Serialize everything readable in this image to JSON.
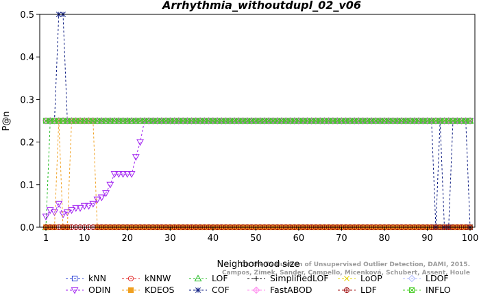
{
  "chart_data": {
    "type": "line",
    "title": "Arrhythmia_withoutdupl_02_v06",
    "xlabel": "Neighborhood size",
    "ylabel": "P@n",
    "xlim": [
      1,
      100
    ],
    "ylim": [
      0,
      0.5
    ],
    "xticks": [
      1,
      10,
      20,
      30,
      40,
      50,
      60,
      70,
      80,
      90,
      100
    ],
    "yticks": [
      0.0,
      0.1,
      0.2,
      0.3,
      0.4,
      0.5
    ],
    "grid": false,
    "legend_position": "bottom",
    "watermark_lines": [
      "Campos, Zimek, Sander, Campello, Micenková, Schubert, Assent, Houle",
      "On the Evaluation of Unsupervised Outlier Detection, DAMI, 2015."
    ],
    "series": [
      {
        "name": "kNN",
        "color": "#2a3fd6",
        "marker": "square",
        "segments": [
          {
            "x": [
              1,
              100
            ],
            "y": [
              0.25,
              0.25
            ]
          }
        ]
      },
      {
        "name": "kNNW",
        "color": "#e02020",
        "marker": "circle",
        "segments": [
          {
            "x": [
              1,
              100
            ],
            "y": [
              0.25,
              0.25
            ]
          }
        ]
      },
      {
        "name": "LOF",
        "color": "#22bb22",
        "marker": "triangle",
        "points": [
          [
            1,
            0.0
          ],
          [
            2,
            0.25
          ],
          [
            100,
            0.25
          ]
        ]
      },
      {
        "name": "SimplifiedLOF",
        "color": "#000000",
        "marker": "plus",
        "segments": [
          {
            "x": [
              1,
              100
            ],
            "y": [
              0.25,
              0.25
            ]
          }
        ]
      },
      {
        "name": "LoOP",
        "color": "#e6d400",
        "marker": "x",
        "segments": [
          {
            "x": [
              1,
              100
            ],
            "y": [
              0.25,
              0.25
            ]
          }
        ]
      },
      {
        "name": "LDOF",
        "color": "#aeb8ff",
        "marker": "diamond",
        "segments": [
          {
            "x": [
              1,
              100
            ],
            "y": [
              0.25,
              0.25
            ]
          }
        ]
      },
      {
        "name": "ODIN",
        "color": "#a020f0",
        "marker": "triangle-down",
        "points": [
          [
            1,
            0.025
          ],
          [
            2,
            0.04
          ],
          [
            3,
            0.035
          ],
          [
            4,
            0.055
          ],
          [
            5,
            0.03
          ],
          [
            6,
            0.035
          ],
          [
            7,
            0.04
          ],
          [
            8,
            0.045
          ],
          [
            9,
            0.045
          ],
          [
            10,
            0.05
          ],
          [
            11,
            0.05
          ],
          [
            12,
            0.055
          ],
          [
            13,
            0.065
          ],
          [
            14,
            0.07
          ],
          [
            15,
            0.08
          ],
          [
            16,
            0.1
          ],
          [
            17,
            0.125
          ],
          [
            18,
            0.125
          ],
          [
            19,
            0.125
          ],
          [
            20,
            0.125
          ],
          [
            21,
            0.125
          ],
          [
            22,
            0.165
          ],
          [
            23,
            0.2
          ],
          [
            24,
            0.25
          ],
          [
            100,
            0.25
          ]
        ]
      },
      {
        "name": "KDEOS",
        "color": "#f0a020",
        "marker": "square-filled",
        "points": [
          [
            1,
            0.0
          ],
          [
            3,
            0.0
          ],
          [
            4,
            0.25
          ],
          [
            5,
            0.0
          ],
          [
            6,
            0.0
          ],
          [
            7,
            0.25
          ],
          [
            8,
            0.25
          ],
          [
            12,
            0.25
          ],
          [
            13,
            0.0
          ],
          [
            100,
            0.0
          ]
        ]
      },
      {
        "name": "COF",
        "color": "#0a1a80",
        "marker": "asterisk",
        "points": [
          [
            1,
            0.25
          ],
          [
            2,
            0.25
          ],
          [
            3,
            0.25
          ],
          [
            4,
            0.5
          ],
          [
            5,
            0.5
          ],
          [
            6,
            0.25
          ],
          [
            91,
            0.25
          ],
          [
            92,
            0.0
          ],
          [
            93,
            0.25
          ],
          [
            94,
            0.0
          ],
          [
            95,
            0.0
          ],
          [
            96,
            0.25
          ],
          [
            97,
            0.25
          ],
          [
            98,
            0.25
          ],
          [
            99,
            0.25
          ],
          [
            100,
            0.0
          ]
        ]
      },
      {
        "name": "FastABOD",
        "color": "#ff88ee",
        "marker": "diamond-plus",
        "segments": [
          {
            "x": [
              1,
              100
            ],
            "y": [
              0.25,
              0.25
            ]
          }
        ]
      },
      {
        "name": "LDF",
        "color": "#a01010",
        "marker": "circle-plus",
        "segments": [
          {
            "x": [
              1,
              100
            ],
            "y": [
              0.0,
              0.0
            ]
          }
        ]
      },
      {
        "name": "INFLO",
        "color": "#44cc22",
        "marker": "square-x",
        "segments": [
          {
            "x": [
              1,
              100
            ],
            "y": [
              0.25,
              0.25
            ]
          }
        ]
      }
    ]
  }
}
